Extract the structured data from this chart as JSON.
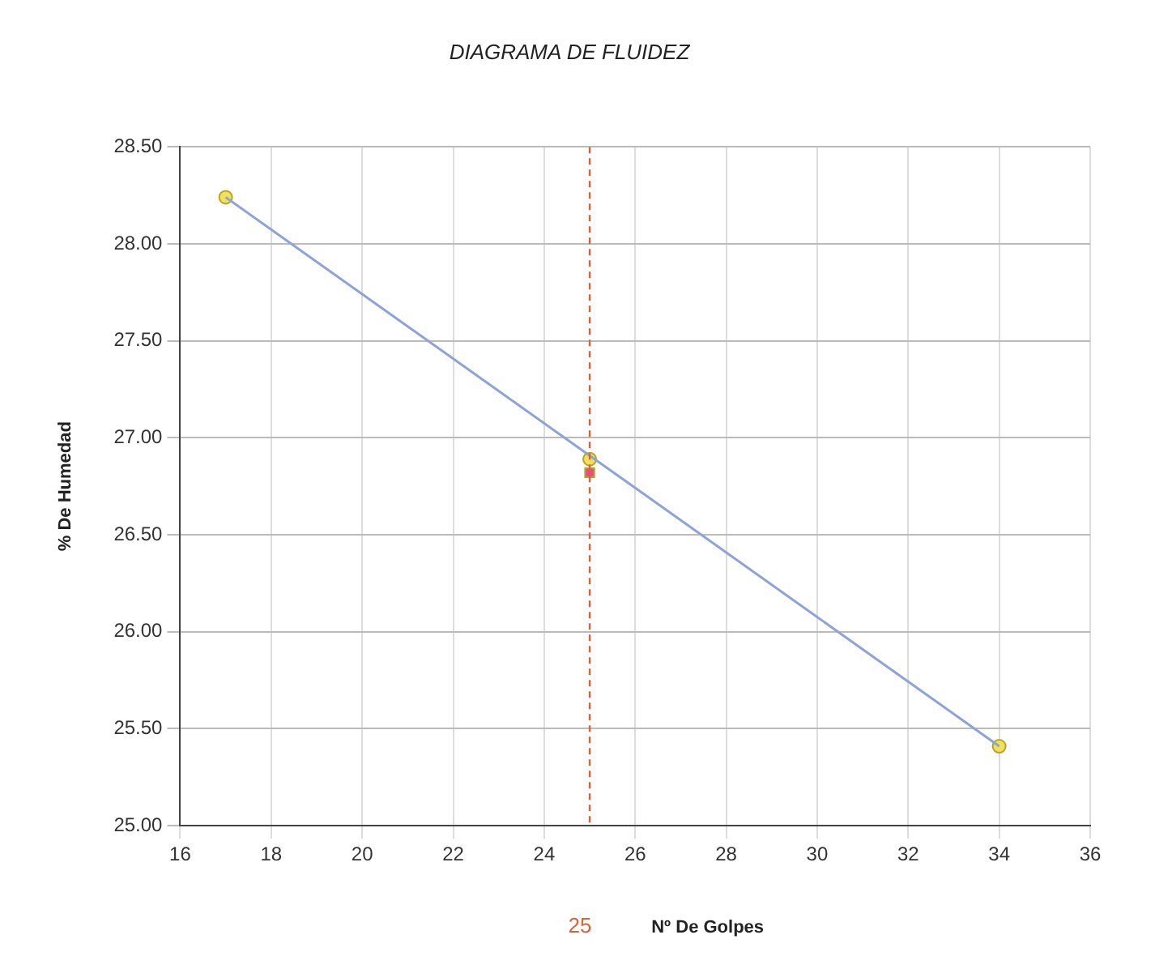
{
  "chart_data": {
    "type": "scatter",
    "title": "DIAGRAMA DE FLUIDEZ",
    "xlabel": "Nº De Golpes",
    "ylabel": "% De Humedad",
    "xlim": [
      16,
      36
    ],
    "xticks": [
      16,
      18,
      20,
      22,
      24,
      26,
      28,
      30,
      32,
      34,
      36
    ],
    "ylim": [
      25,
      28.5
    ],
    "yticks": [
      {
        "value": 25,
        "label": "25.00"
      },
      {
        "value": 25.5,
        "label": "25.50"
      },
      {
        "value": 26,
        "label": "26.00"
      },
      {
        "value": 26.5,
        "label": "26.50"
      },
      {
        "value": 27,
        "label": "27.00"
      },
      {
        "value": 27.5,
        "label": "27.50"
      },
      {
        "value": 28,
        "label": "28.00"
      },
      {
        "value": 28.5,
        "label": "28.50"
      }
    ],
    "grid": true,
    "legend": false,
    "series": [
      {
        "type": "line",
        "color": "#8ea3d6",
        "marker": "none",
        "x": [
          17,
          34
        ],
        "values": [
          28.24,
          25.41
        ]
      },
      {
        "color": "#f2e05a",
        "marker": "circle",
        "x": [
          17,
          25,
          34
        ],
        "values": [
          28.24,
          26.89,
          25.41
        ]
      },
      {
        "color": "#e84c8a",
        "marker": "square",
        "x": [
          25
        ],
        "values": [
          26.82
        ]
      }
    ],
    "ref_lines": [
      {
        "axis": "x",
        "value": 25,
        "label": "25",
        "color": "#e0603a",
        "line_style": "dashed"
      }
    ]
  }
}
